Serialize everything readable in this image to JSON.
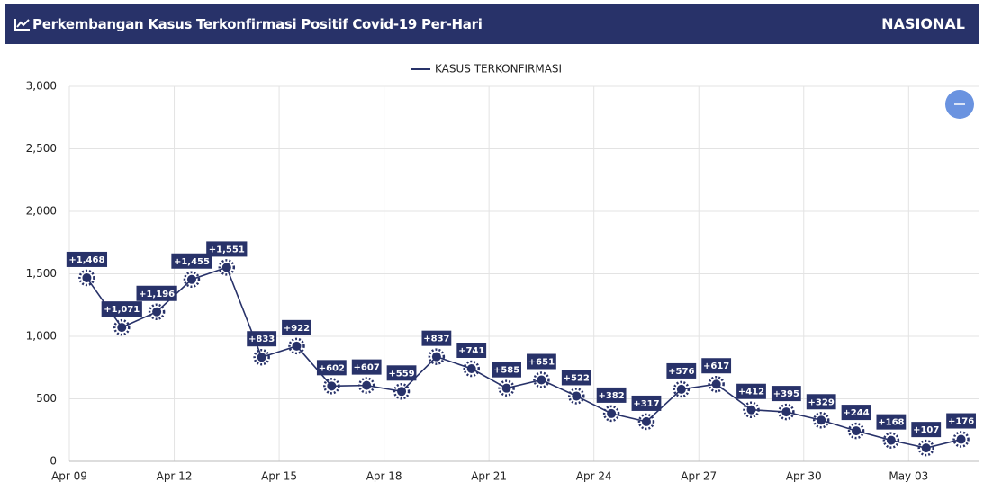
{
  "header": {
    "title": "Perkembangan Kasus Terkonfirmasi Positif Covid-19 Per-Hari",
    "region": "NASIONAL"
  },
  "chart_data": {
    "type": "line",
    "categories": [
      "Apr 09",
      null,
      null,
      "Apr 12",
      null,
      null,
      "Apr 15",
      null,
      null,
      "Apr 18",
      null,
      null,
      "Apr 21",
      null,
      null,
      "Apr 24",
      null,
      null,
      "Apr 27",
      null,
      null,
      "Apr 30",
      null,
      null,
      "May 03",
      null
    ],
    "series": [
      {
        "name": "KASUS TERKONFIRMASI",
        "color": "#283269",
        "values": [
          1468,
          1071,
          1196,
          1455,
          1551,
          833,
          922,
          602,
          607,
          559,
          837,
          741,
          585,
          651,
          522,
          382,
          317,
          576,
          617,
          412,
          395,
          329,
          244,
          168,
          107,
          176
        ],
        "value_labels": [
          "+1,468",
          "+1,071",
          "+1,196",
          "+1,455",
          "+1,551",
          "+833",
          "+922",
          "+602",
          "+607",
          "+559",
          "+837",
          "+741",
          "+585",
          "+651",
          "+522",
          "+382",
          "+317",
          "+576",
          "+617",
          "+412",
          "+395",
          "+329",
          "+244",
          "+168",
          "+107",
          "+176"
        ]
      }
    ],
    "ylim": [
      0,
      3000
    ],
    "yticks": [
      0,
      500,
      {
        "value": 1000,
        "label": "1,000"
      },
      {
        "value": 1500,
        "label": "1,500"
      },
      {
        "value": 2000,
        "label": "2,000"
      },
      {
        "value": 2500,
        "label": "2,500"
      },
      {
        "value": 3000,
        "label": "3,000"
      }
    ],
    "grid": true,
    "legend": "top"
  }
}
